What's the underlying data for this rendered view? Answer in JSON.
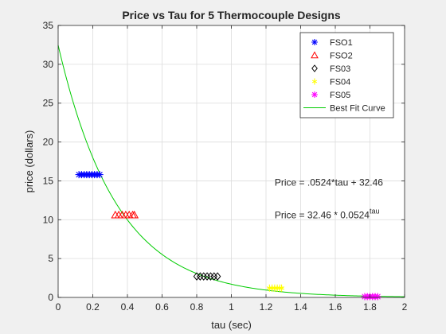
{
  "chart_data": {
    "type": "scatter",
    "title": "Price vs Tau for 5 Thermocouple Designs",
    "xlabel": "tau (sec)",
    "ylabel": "price (dollars)",
    "xlim": [
      0,
      2
    ],
    "ylim": [
      0,
      35
    ],
    "xticks": [
      0,
      0.2,
      0.4,
      0.6,
      0.8,
      1,
      1.2,
      1.4,
      1.6,
      1.8,
      2
    ],
    "xtick_labels": [
      "0",
      "0.2",
      "0.4",
      "0.6",
      "0.8",
      "1",
      "1.2",
      "1.4",
      "1.6",
      "1.8",
      "2"
    ],
    "yticks": [
      0,
      5,
      10,
      15,
      20,
      25,
      30,
      35
    ],
    "ytick_labels": [
      "0",
      "5",
      "10",
      "15",
      "20",
      "25",
      "30",
      "35"
    ],
    "grid": true,
    "legend_position": "top-right",
    "series": [
      {
        "name": "FSO1",
        "marker": "asterisk",
        "color": "#0000ff",
        "y": 15.8,
        "x": [
          0.12,
          0.135,
          0.15,
          0.165,
          0.18,
          0.195,
          0.21,
          0.225,
          0.24
        ]
      },
      {
        "name": "FSO2",
        "marker": "triangle",
        "color": "#ff0000",
        "y": 10.6,
        "x": [
          0.33,
          0.35,
          0.37,
          0.39,
          0.41,
          0.43,
          0.44
        ]
      },
      {
        "name": "FS03",
        "marker": "diamond",
        "color": "#000000",
        "y": 2.7,
        "x": [
          0.8,
          0.82,
          0.84,
          0.86,
          0.88,
          0.9,
          0.92
        ]
      },
      {
        "name": "FS04",
        "marker": "star",
        "color": "#ffff00",
        "y": 1.2,
        "x": [
          1.22,
          1.235,
          1.25,
          1.265,
          1.28,
          1.29
        ]
      },
      {
        "name": "FS05",
        "marker": "asterisk",
        "color": "#ff00ff",
        "y": 0.1,
        "x": [
          1.77,
          1.785,
          1.8,
          1.815,
          1.83,
          1.845
        ]
      }
    ],
    "fit_curve": {
      "name": "Best Fit Curve",
      "color": "#00cc00",
      "a": 32.46,
      "b": 0.0524
    },
    "annotations": [
      {
        "text": "Price = .0524*tau + 32.46",
        "x": 1.25,
        "y": 14.8
      },
      {
        "text": "Price = 32.46 * 0.0524",
        "superscript": "tau",
        "x": 1.25,
        "y": 10.6
      }
    ]
  }
}
